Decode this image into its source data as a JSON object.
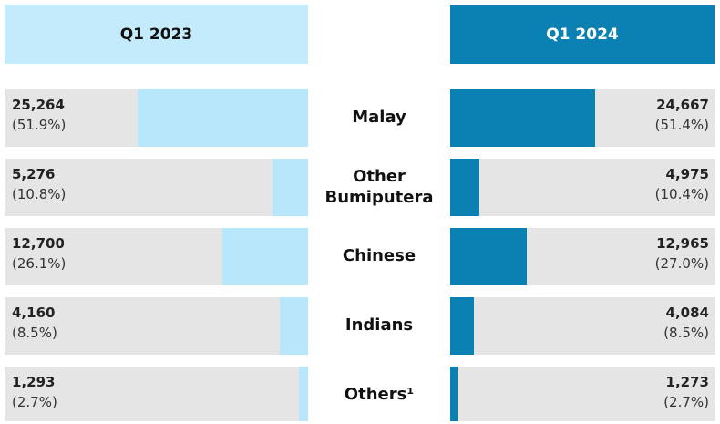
{
  "chart_data": {
    "type": "butterfly-bar",
    "categories": [
      "Malay",
      "Other Bumiputera",
      "Chinese",
      "Indians",
      "Others¹"
    ],
    "xlim": [
      0,
      45000
    ],
    "series": [
      {
        "name": "Q1 2023",
        "color": "#b8e6fb",
        "header_color": "#c3ebfb",
        "header_text_color": "#111111",
        "values": [
          25264,
          5276,
          12700,
          4160,
          1293
        ],
        "value_labels": [
          "25,264",
          "5,276",
          "12,700",
          "4,160",
          "1,293"
        ],
        "shares": [
          51.9,
          10.8,
          26.1,
          8.5,
          2.7
        ],
        "share_labels": [
          "(51.9%)",
          "(10.8%)",
          "(26.1%)",
          "(8.5%)",
          "(2.7%)"
        ]
      },
      {
        "name": "Q1 2024",
        "color": "#0a80b3",
        "header_color": "#0a80b3",
        "header_text_color": "#ffffff",
        "values": [
          24667,
          4975,
          12965,
          4084,
          1273
        ],
        "value_labels": [
          "24,667",
          "4,975",
          "12,965",
          "4,084",
          "1,273"
        ],
        "shares": [
          51.4,
          10.4,
          27.0,
          8.5,
          2.7
        ],
        "share_labels": [
          "(51.4%)",
          "(10.4%)",
          "(27.0%)",
          "(8.5%)",
          "(2.7%)"
        ]
      }
    ]
  }
}
